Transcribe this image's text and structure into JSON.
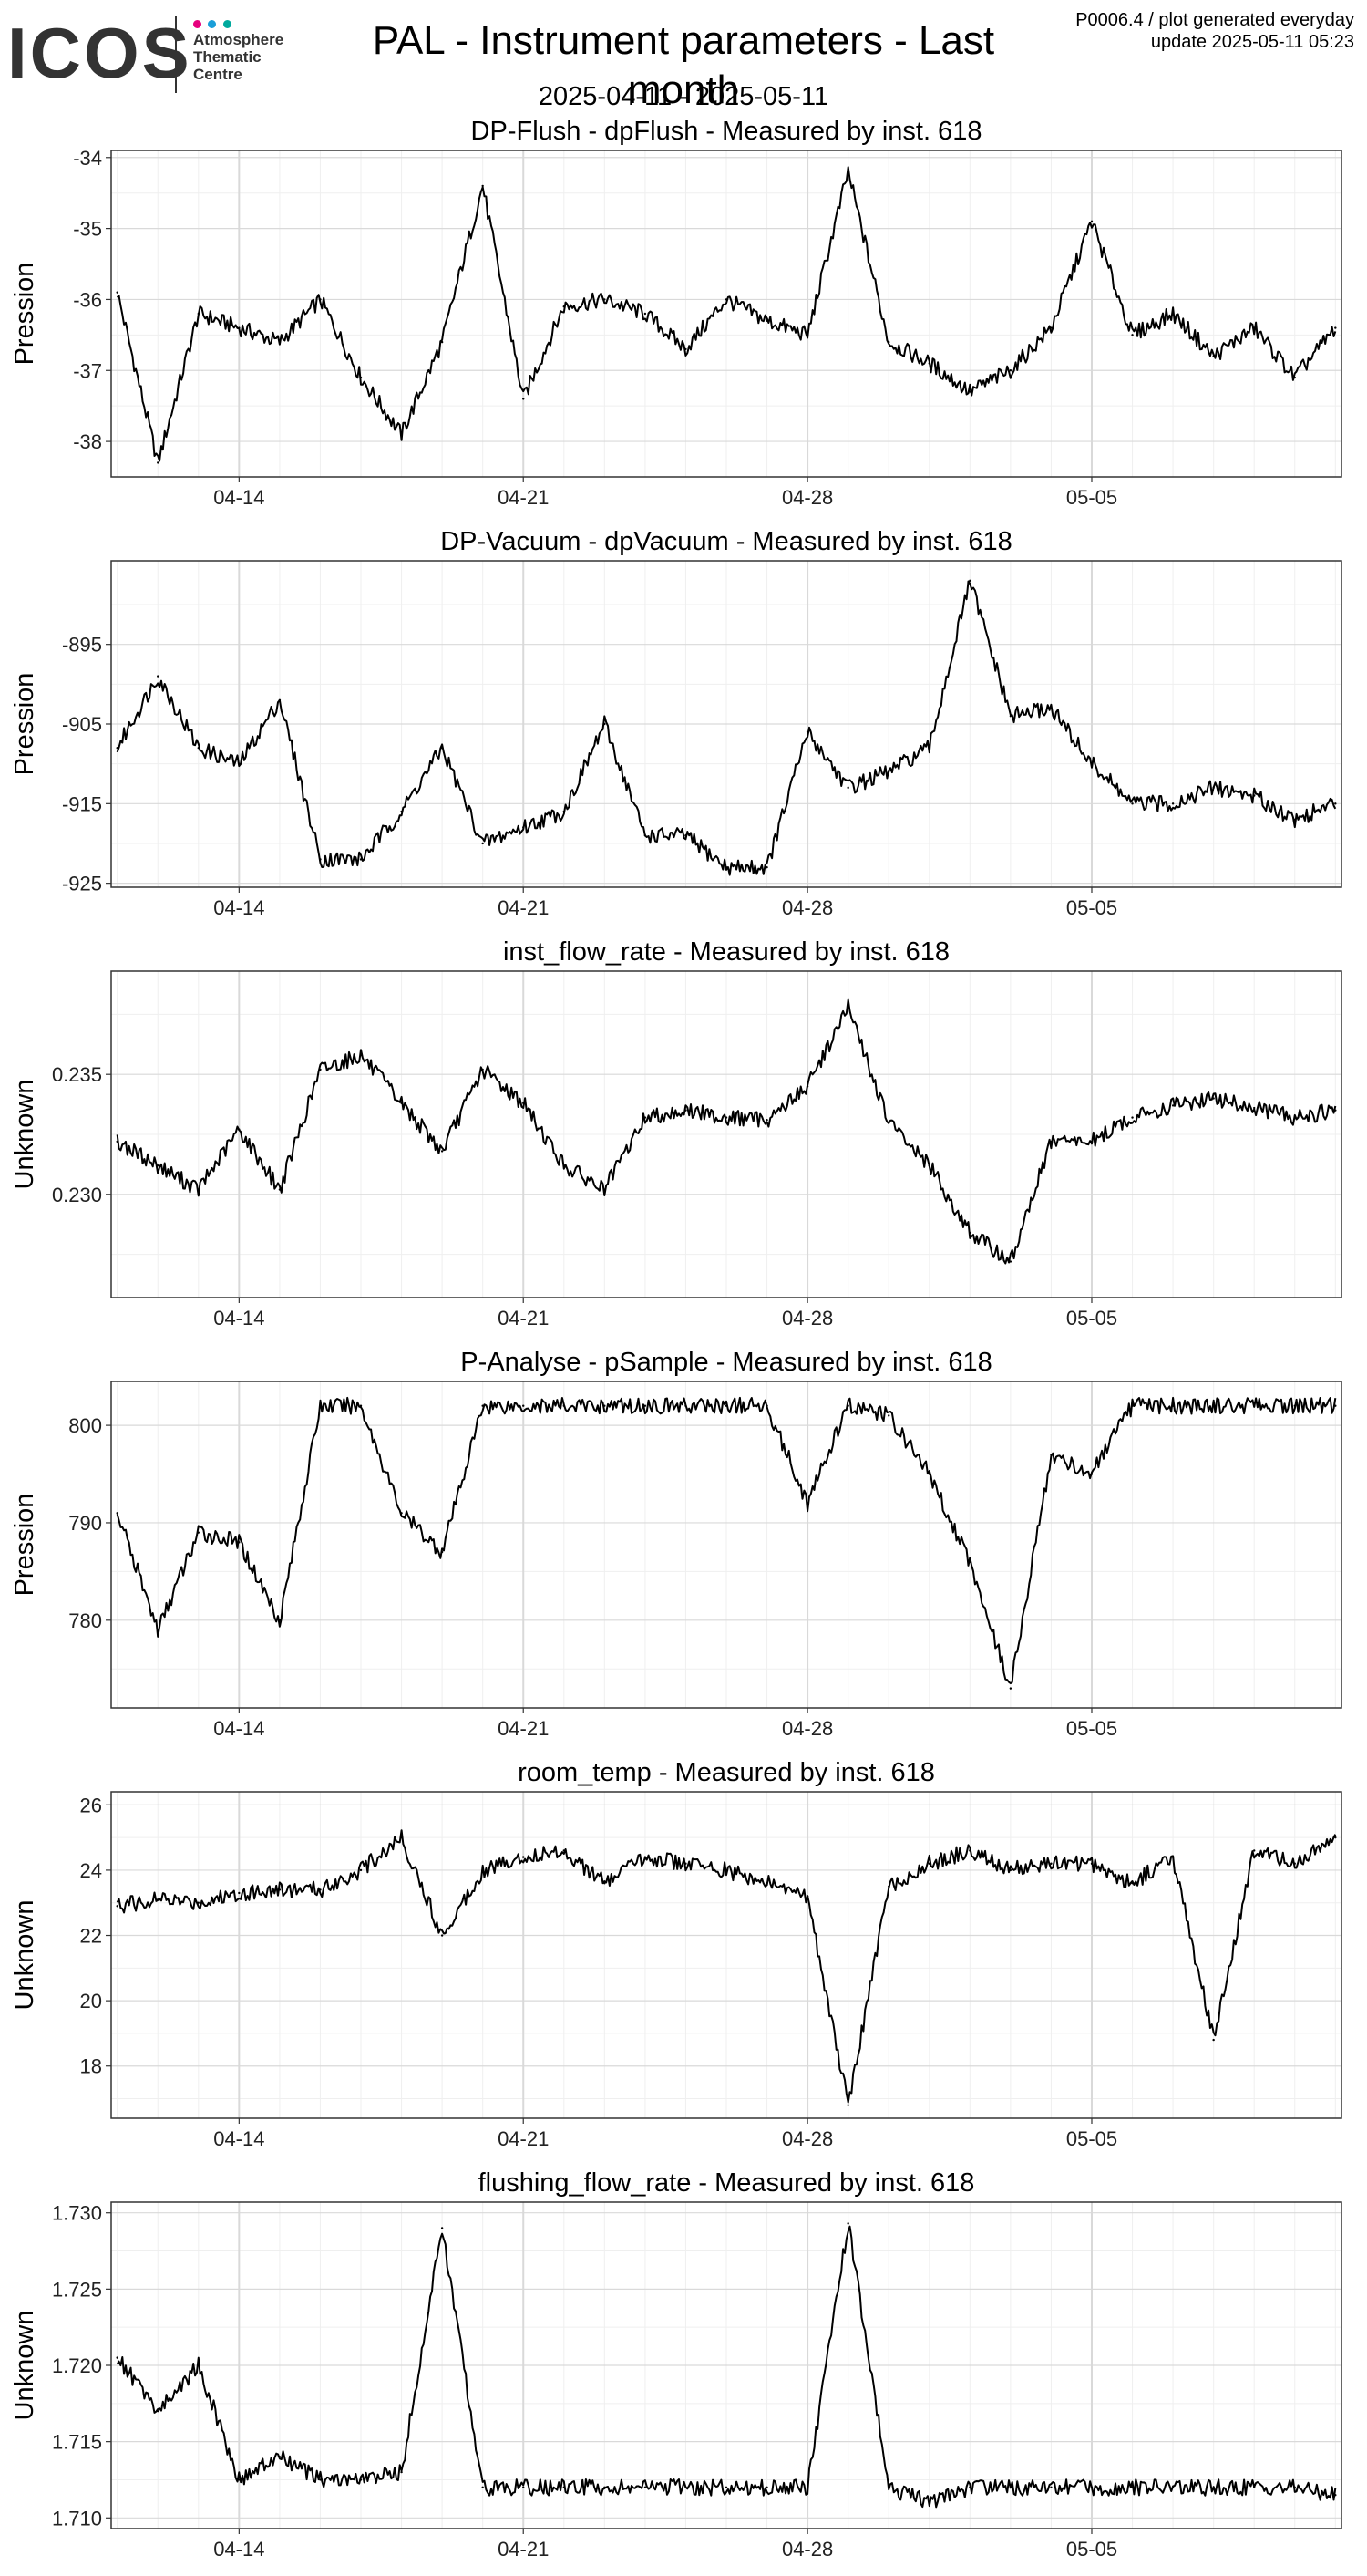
{
  "header": {
    "logo_word": "ICOS",
    "logo_subtitle": [
      "Atmosphere",
      "Thematic",
      "Centre"
    ],
    "title": "PAL - Instrument parameters - Last month",
    "date_range": "2025-04-11 - 2025-05-11",
    "meta_line1": "P0006.4 / plot generated everyday",
    "meta_line2": "update  2025-05-11 05:23",
    "logo_dot_colors": [
      "#e6007e",
      "#1a9ed8",
      "#00a99d"
    ]
  },
  "style": {
    "line_color": "#000000",
    "grid_major": "#d9d9d9",
    "grid_minor": "#efefef",
    "panel_border": "#333333"
  },
  "chart_data": [
    {
      "type": "line",
      "title": "DP-Flush - dpFlush - Measured by inst. 618",
      "ylabel": "Pression",
      "xlim": [
        "2025-04-11",
        "2025-05-11"
      ],
      "ylim": [
        -38.5,
        -33.9
      ],
      "yticks": [
        -34,
        -35,
        -36,
        -37,
        -38
      ],
      "xticks": [
        "04-14",
        "04-21",
        "04-28",
        "05-05"
      ],
      "grid": true,
      "x": [
        "04-11",
        "04-12",
        "04-13",
        "04-14",
        "04-15",
        "04-16",
        "04-17",
        "04-18",
        "04-19",
        "04-20",
        "04-21",
        "04-22",
        "04-23",
        "04-24",
        "04-25",
        "04-26",
        "04-27",
        "04-28",
        "04-29",
        "04-30",
        "05-01",
        "05-02",
        "05-03",
        "05-04",
        "05-05",
        "05-06",
        "05-07",
        "05-08",
        "05-09",
        "05-10",
        "05-11"
      ],
      "y": [
        -35.9,
        -38.3,
        -36.2,
        -36.4,
        -36.6,
        -36.0,
        -37.1,
        -37.9,
        -36.6,
        -34.4,
        -37.4,
        -36.1,
        -36.0,
        -36.2,
        -36.7,
        -36.0,
        -36.3,
        -36.5,
        -34.2,
        -36.6,
        -36.9,
        -37.3,
        -37.0,
        -36.4,
        -34.9,
        -36.5,
        -36.2,
        -36.8,
        -36.4,
        -37.1,
        -36.4
      ]
    },
    {
      "type": "line",
      "title": "DP-Vacuum - dpVacuum - Measured by inst. 618",
      "ylabel": "Pression",
      "xlim": [
        "2025-04-11",
        "2025-05-11"
      ],
      "ylim": [
        -925.5,
        -884.5
      ],
      "yticks": [
        -895,
        -905,
        -915,
        -925
      ],
      "xticks": [
        "04-14",
        "04-21",
        "04-28",
        "05-05"
      ],
      "grid": true,
      "x": [
        "04-11",
        "04-12",
        "04-13",
        "04-14",
        "04-15",
        "04-16",
        "04-17",
        "04-18",
        "04-19",
        "04-20",
        "04-21",
        "04-22",
        "04-23",
        "04-24",
        "04-25",
        "04-26",
        "04-27",
        "04-28",
        "04-29",
        "04-30",
        "05-01",
        "05-02",
        "05-03",
        "05-04",
        "05-05",
        "05-06",
        "05-07",
        "05-08",
        "05-09",
        "05-10",
        "05-11"
      ],
      "y": [
        -908,
        -899,
        -908,
        -910,
        -902,
        -922,
        -922,
        -916,
        -908,
        -920,
        -918,
        -916,
        -905,
        -919,
        -919,
        -923,
        -923,
        -906,
        -913,
        -911,
        -908,
        -887,
        -904,
        -903,
        -910,
        -915,
        -915,
        -913,
        -914,
        -917,
        -915
      ]
    },
    {
      "type": "line",
      "title": "inst_flow_rate - Measured by inst. 618",
      "ylabel": "Unknown",
      "xlim": [
        "2025-04-11",
        "2025-05-11"
      ],
      "ylim": [
        0.2257,
        0.2393
      ],
      "yticks": [
        0.235,
        0.23
      ],
      "yticklabels": [
        "0.235",
        "0.230"
      ],
      "xticks": [
        "04-14",
        "04-21",
        "04-28",
        "05-05"
      ],
      "grid": true,
      "x": [
        "04-11",
        "04-12",
        "04-13",
        "04-14",
        "04-15",
        "04-16",
        "04-17",
        "04-18",
        "04-19",
        "04-20",
        "04-21",
        "04-22",
        "04-23",
        "04-24",
        "04-25",
        "04-26",
        "04-27",
        "04-28",
        "04-29",
        "04-30",
        "05-01",
        "05-02",
        "05-03",
        "05-04",
        "05-05",
        "05-06",
        "05-07",
        "05-08",
        "05-09",
        "05-10",
        "05-11"
      ],
      "y": [
        0.2322,
        0.2312,
        0.2302,
        0.2327,
        0.2302,
        0.2352,
        0.2358,
        0.2338,
        0.2318,
        0.2352,
        0.2338,
        0.2312,
        0.2302,
        0.2332,
        0.2335,
        0.2332,
        0.2331,
        0.2345,
        0.2378,
        0.233,
        0.2312,
        0.2284,
        0.2272,
        0.2322,
        0.2322,
        0.2332,
        0.2337,
        0.234,
        0.2336,
        0.2332,
        0.2335
      ]
    },
    {
      "type": "line",
      "title": "P-Analyse - pSample - Measured by inst. 618",
      "ylabel": "Pression",
      "xlim": [
        "2025-04-11",
        "2025-05-11"
      ],
      "ylim": [
        771.0,
        804.5
      ],
      "yticks": [
        800,
        790,
        780
      ],
      "xticks": [
        "04-14",
        "04-21",
        "04-28",
        "05-05"
      ],
      "grid": true,
      "x": [
        "04-11",
        "04-12",
        "04-13",
        "04-14",
        "04-15",
        "04-16",
        "04-17",
        "04-18",
        "04-19",
        "04-20",
        "04-21",
        "04-22",
        "04-23",
        "04-24",
        "04-25",
        "04-26",
        "04-27",
        "04-28",
        "04-29",
        "04-30",
        "05-01",
        "05-02",
        "05-03",
        "05-04",
        "05-05",
        "05-06",
        "05-07",
        "05-08",
        "05-09",
        "05-10",
        "05-11"
      ],
      "y": [
        791,
        779,
        789,
        788,
        780,
        802,
        802,
        791,
        787,
        802,
        802,
        802,
        802,
        802,
        802,
        802,
        802,
        792,
        802,
        801,
        795,
        786,
        773,
        797,
        795,
        802,
        802,
        802,
        802,
        802,
        802
      ]
    },
    {
      "type": "line",
      "title": "room_temp - Measured by inst. 618",
      "ylabel": "Unknown",
      "xlim": [
        "2025-04-11",
        "2025-05-11"
      ],
      "ylim": [
        16.4,
        26.4
      ],
      "yticks": [
        26,
        24,
        22,
        20,
        18
      ],
      "xticks": [
        "04-14",
        "04-21",
        "04-28",
        "05-05"
      ],
      "grid": true,
      "x": [
        "04-11",
        "04-12",
        "04-13",
        "04-14",
        "04-15",
        "04-16",
        "04-17",
        "04-18",
        "04-19",
        "04-20",
        "04-21",
        "04-22",
        "04-23",
        "04-24",
        "04-25",
        "04-26",
        "04-27",
        "04-28",
        "04-29",
        "04-30",
        "05-01",
        "05-02",
        "05-03",
        "05-04",
        "05-05",
        "05-06",
        "05-07",
        "05-08",
        "05-09",
        "05-10",
        "05-11"
      ],
      "y": [
        22.9,
        23.1,
        23.0,
        23.3,
        23.4,
        23.4,
        24.0,
        25.0,
        22.0,
        24.0,
        24.4,
        24.6,
        23.6,
        24.4,
        24.2,
        24.0,
        23.6,
        23.2,
        16.8,
        23.5,
        24.2,
        24.6,
        24.0,
        24.2,
        24.2,
        23.6,
        24.4,
        18.8,
        24.6,
        24.2,
        25.0
      ]
    },
    {
      "type": "line",
      "title": "flushing_flow_rate - Measured by inst. 618",
      "ylabel": "Unknown",
      "xlim": [
        "2025-04-11",
        "2025-05-11"
      ],
      "ylim": [
        1.7093,
        1.7307
      ],
      "yticks": [
        1.73,
        1.725,
        1.72,
        1.715,
        1.71
      ],
      "yticklabels": [
        "1.730",
        "1.725",
        "1.720",
        "1.715",
        "1.710"
      ],
      "xticks": [
        "04-14",
        "04-21",
        "04-28",
        "05-05"
      ],
      "grid": true,
      "x": [
        "04-11",
        "04-12",
        "04-13",
        "04-14",
        "04-15",
        "04-16",
        "04-17",
        "04-18",
        "04-19",
        "04-20",
        "04-21",
        "04-22",
        "04-23",
        "04-24",
        "04-25",
        "04-26",
        "04-27",
        "04-28",
        "04-29",
        "04-30",
        "05-01",
        "05-02",
        "05-03",
        "05-04",
        "05-05",
        "05-06",
        "05-07",
        "05-08",
        "05-09",
        "05-10",
        "05-11"
      ],
      "y": [
        1.7205,
        1.717,
        1.72,
        1.7125,
        1.714,
        1.7125,
        1.7125,
        1.713,
        1.729,
        1.712,
        1.712,
        1.712,
        1.712,
        1.712,
        1.712,
        1.712,
        1.712,
        1.712,
        1.7293,
        1.712,
        1.711,
        1.712,
        1.712,
        1.712,
        1.712,
        1.712,
        1.712,
        1.712,
        1.712,
        1.712,
        1.7115
      ]
    }
  ]
}
